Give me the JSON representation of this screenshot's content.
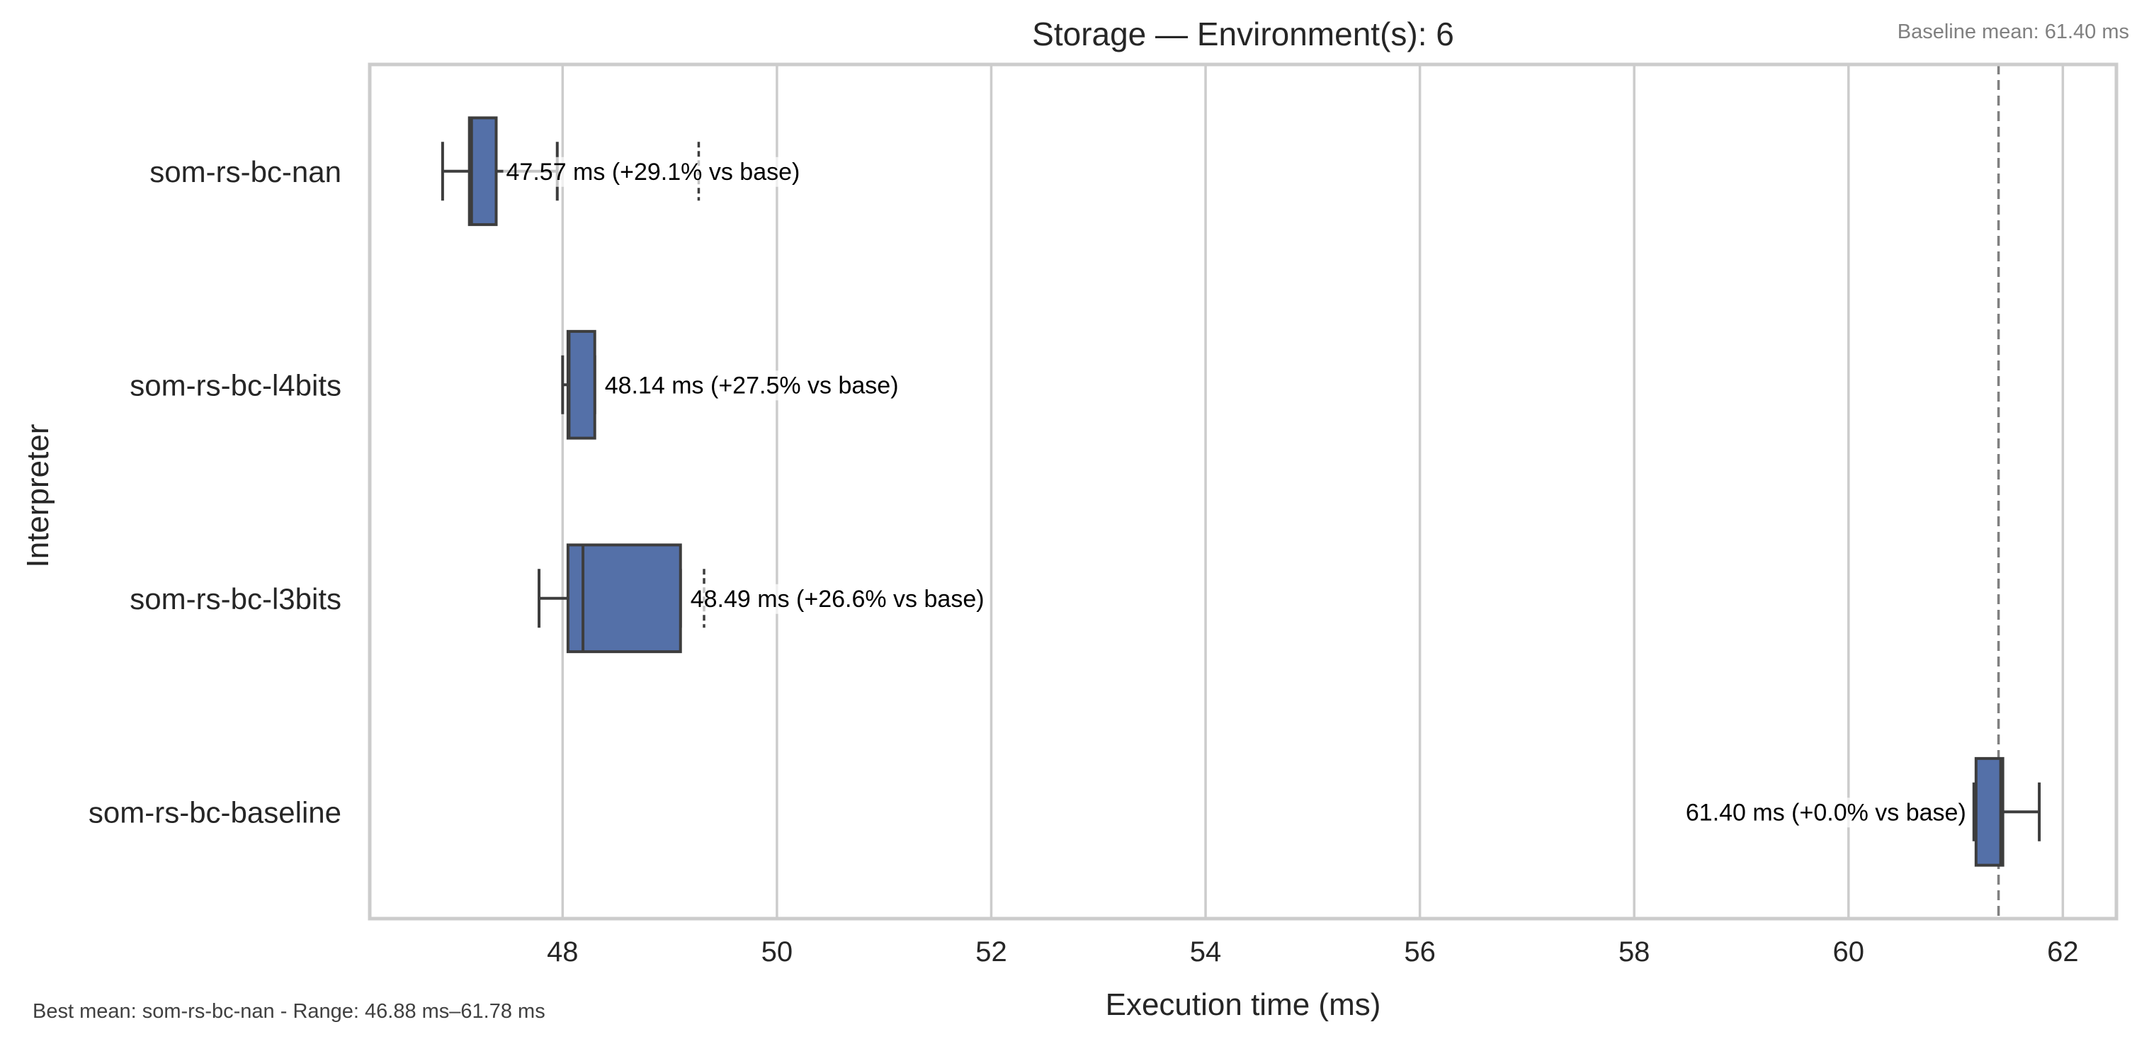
{
  "chart_data": {
    "type": "box",
    "orientation": "horizontal",
    "title": "Storage — Environment(s): 6",
    "xlabel": "Execution time (ms)",
    "ylabel": "Interpreter",
    "xlim": [
      46.2,
      62.5
    ],
    "xticks": [
      48,
      50,
      52,
      54,
      56,
      58,
      60,
      62
    ],
    "grid": "vertical",
    "box_color": "#5470a8",
    "baseline": {
      "value": 61.4,
      "label": "Baseline mean: 61.40 ms"
    },
    "footer": "Best mean: som-rs-bc-nan - Range: 46.88 ms–61.78 ms",
    "series": [
      {
        "name": "som-rs-bc-nan",
        "whislo": 46.88,
        "q1": 47.13,
        "med": 47.15,
        "q3": 47.38,
        "whishi": 47.95,
        "fliers": [
          49.27
        ],
        "mean": 47.57,
        "annotation": "47.57 ms  (+29.1% vs base)"
      },
      {
        "name": "som-rs-bc-l4bits",
        "whislo": 48.0,
        "q1": 48.05,
        "med": 48.06,
        "q3": 48.3,
        "whishi": 48.3,
        "fliers": [],
        "mean": 48.14,
        "annotation": "48.14 ms  (+27.5% vs base)"
      },
      {
        "name": "som-rs-bc-l3bits",
        "whislo": 47.78,
        "q1": 48.05,
        "med": 48.19,
        "q3": 49.1,
        "whishi": 49.1,
        "fliers": [
          49.32
        ],
        "mean": 48.49,
        "annotation": "48.49 ms  (+26.6% vs base)"
      },
      {
        "name": "som-rs-bc-baseline",
        "whislo": 61.17,
        "q1": 61.19,
        "med": 61.42,
        "q3": 61.44,
        "whishi": 61.78,
        "fliers": [],
        "mean": 61.4,
        "annotation": "61.40 ms  (+0.0% vs base)"
      }
    ]
  }
}
